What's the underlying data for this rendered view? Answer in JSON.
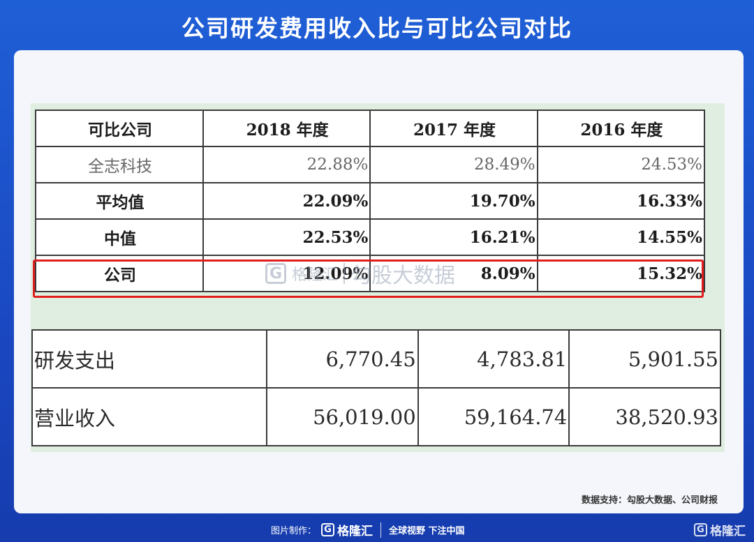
{
  "title": "公司研发费用收入比与可比公司对比",
  "table1": {
    "headers": [
      "可比公司",
      "2018 年度",
      "2017 年度",
      "2016 年度"
    ],
    "rows": [
      {
        "label": "全志科技",
        "values": [
          "22.88%",
          "28.49%",
          "24.53%"
        ]
      },
      {
        "label": "平均值",
        "values": [
          "22.09%",
          "19.70%",
          "16.33%"
        ]
      },
      {
        "label": "中值",
        "values": [
          "22.53%",
          "16.21%",
          "14.55%"
        ]
      },
      {
        "label": "公司",
        "values": [
          "12.09%",
          "8.09%",
          "15.32%"
        ]
      }
    ]
  },
  "watermark": {
    "logo_text": "格隆汇",
    "text": "勾股大数据"
  },
  "table2": {
    "rows": [
      {
        "label": "研发支出",
        "values": [
          "6,770.45",
          "4,783.81",
          "5,901.55"
        ]
      },
      {
        "label": "营业收入",
        "values": [
          "56,019.00",
          "59,164.74",
          "38,520.93"
        ]
      }
    ]
  },
  "source": "数据支持：勾股大数据、公司财报",
  "footer": {
    "credit_label": "图片制作：",
    "logo_text": "格隆汇",
    "slogan": "全球视野 下注中国"
  },
  "corner_logo_text": "格隆汇",
  "colors": {
    "background": "#1f5fd6",
    "highlight_border": "#e11d1d",
    "scan_green": "#dfeee1"
  }
}
